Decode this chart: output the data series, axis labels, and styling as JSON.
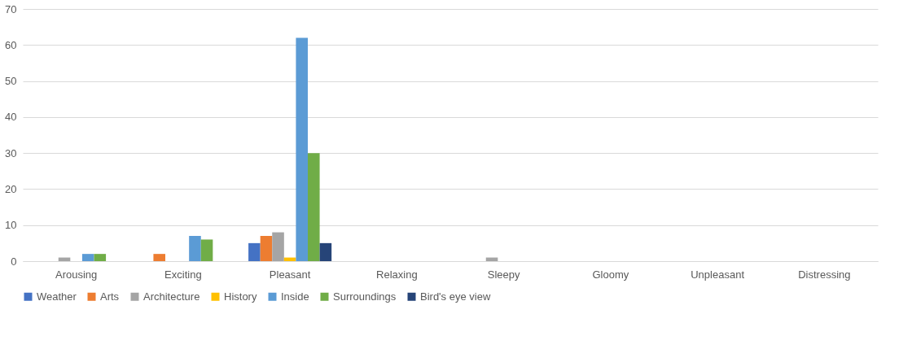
{
  "chart_data": {
    "type": "bar",
    "categories": [
      "Arousing",
      "Exciting",
      "Pleasant",
      "Relaxing",
      "Sleepy",
      "Gloomy",
      "Unpleasant",
      "Distressing"
    ],
    "series": [
      {
        "name": "Weather",
        "color": "#4472c4",
        "values": [
          0,
          0,
          5,
          0,
          0,
          0,
          0,
          0
        ]
      },
      {
        "name": "Arts",
        "color": "#ed7d31",
        "values": [
          0,
          2,
          7,
          0,
          0,
          0,
          0,
          0
        ]
      },
      {
        "name": "Architecture",
        "color": "#a5a5a5",
        "values": [
          1,
          0,
          8,
          0,
          1,
          0,
          0,
          0
        ]
      },
      {
        "name": "History",
        "color": "#ffc000",
        "values": [
          0,
          0,
          1,
          0,
          0,
          0,
          0,
          0
        ]
      },
      {
        "name": "Inside",
        "color": "#5b9bd5",
        "values": [
          2,
          7,
          62,
          0,
          0,
          0,
          0,
          0
        ]
      },
      {
        "name": "Surroundings",
        "color": "#70ad47",
        "values": [
          2,
          6,
          30,
          0,
          0,
          0,
          0,
          0
        ]
      },
      {
        "name": "Bird's eye view",
        "color": "#264478",
        "values": [
          0,
          0,
          5,
          0,
          0,
          0,
          0,
          0
        ]
      }
    ],
    "ylim": [
      0,
      70
    ],
    "yticks": [
      0,
      10,
      20,
      30,
      40,
      50,
      60,
      70
    ],
    "grid": "y",
    "legend": "bottom"
  }
}
